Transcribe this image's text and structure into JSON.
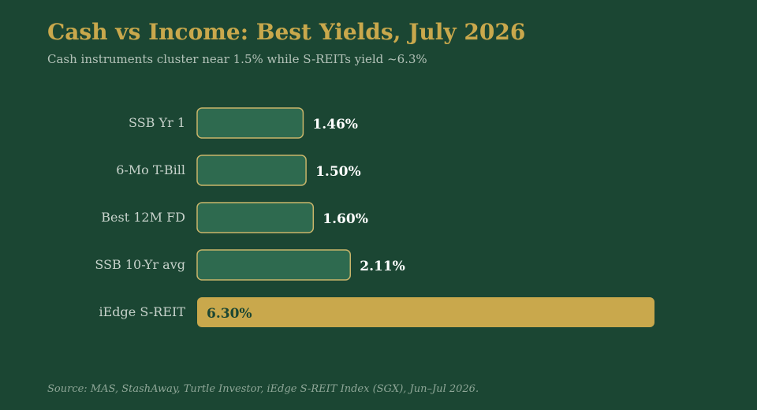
{
  "title": "Cash vs Income: Best Yields, July 2026",
  "subtitle": "Cash instruments cluster near 1.5% while S-REITs yield ~6.3%",
  "source": "Source: MAS, StashAway, Turtle Investor, iEdge S-REIT Index (SGX), Jun–Jul 2026.",
  "colors": {
    "background": "#1b4633",
    "title": "#c9a84c",
    "cash_bar_fill": "#2e6a4f",
    "cash_bar_stroke": "#c9b56a",
    "highlight_bar_fill": "#c9a84c",
    "category_label": "#c7d2cb",
    "value_label": "#ffffff",
    "highlight_value_label": "#1b4633"
  },
  "chart_data": {
    "type": "bar",
    "orientation": "horizontal",
    "categories": [
      "SSB Yr 1",
      "6-Mo T-Bill",
      "Best 12M FD",
      "SSB 10-Yr avg",
      "iEdge S-REIT"
    ],
    "values": [
      1.46,
      1.5,
      1.6,
      2.11,
      6.3
    ],
    "value_labels": [
      "1.46%",
      "1.50%",
      "1.60%",
      "2.11%",
      "6.30%"
    ],
    "highlight": [
      "iEdge S-REIT"
    ],
    "xlim": [
      0,
      6.3
    ],
    "grid": false,
    "legend": "none"
  }
}
